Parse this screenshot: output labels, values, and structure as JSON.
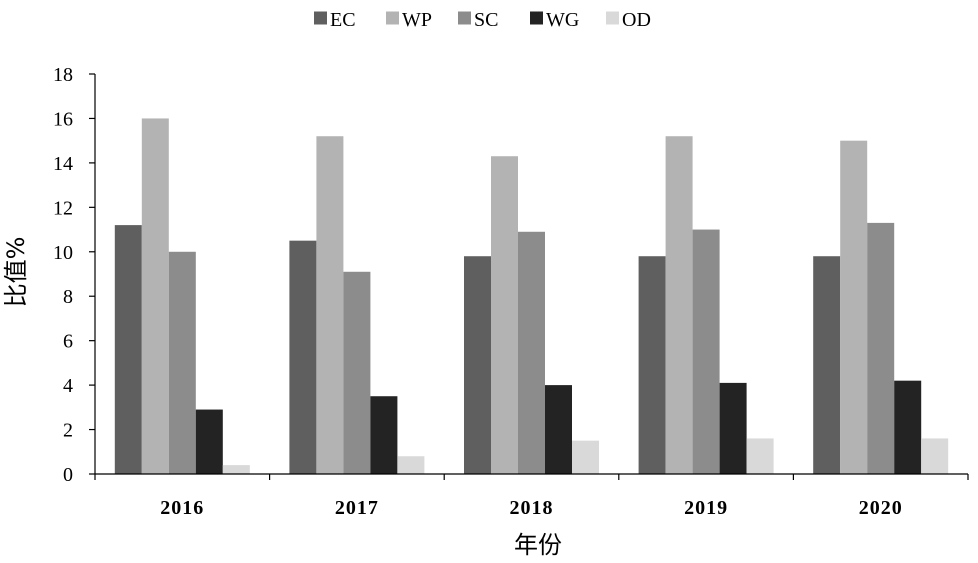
{
  "chart_data": {
    "type": "bar",
    "title": "",
    "xlabel": "年份",
    "ylabel": "比值%",
    "ylim": [
      0,
      18
    ],
    "yticks": [
      0,
      2,
      4,
      6,
      8,
      10,
      12,
      14,
      16,
      18
    ],
    "grid": false,
    "legend_position": "top-center",
    "categories": [
      "2016",
      "2017",
      "2018",
      "2019",
      "2020"
    ],
    "series": [
      {
        "name": "EC",
        "color": "#5f5f5f",
        "values": [
          11.2,
          10.5,
          9.8,
          9.8,
          9.8
        ]
      },
      {
        "name": "WP",
        "color": "#b3b3b3",
        "values": [
          16.0,
          15.2,
          14.3,
          15.2,
          15.0
        ]
      },
      {
        "name": "SC",
        "color": "#8c8c8c",
        "values": [
          10.0,
          9.1,
          10.9,
          11.0,
          11.3
        ]
      },
      {
        "name": "WG",
        "color": "#232323",
        "values": [
          2.9,
          3.5,
          4.0,
          4.1,
          4.2
        ]
      },
      {
        "name": "OD",
        "color": "#d9d9d9",
        "values": [
          0.4,
          0.8,
          1.5,
          1.6,
          1.6
        ]
      }
    ]
  }
}
